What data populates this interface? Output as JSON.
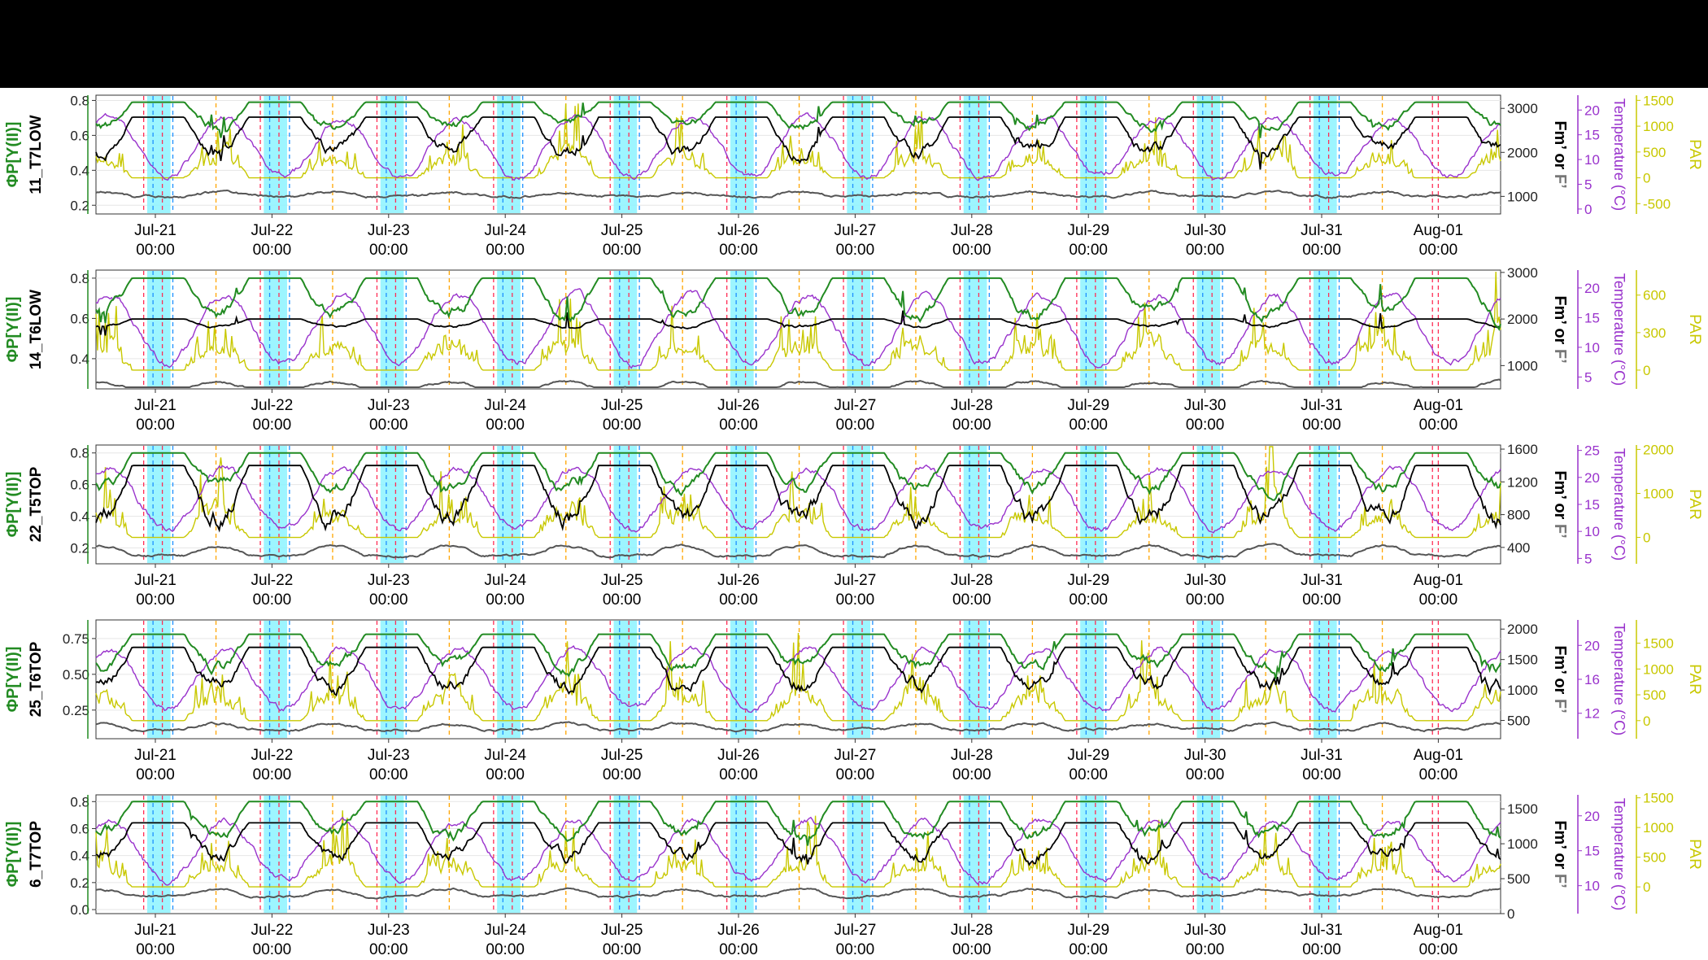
{
  "colors": {
    "phi_psii": "#228B22",
    "fm": "#000000",
    "f": "#555555",
    "temperature": "#9932CC",
    "par": "#C8C800",
    "night_shade": "#8CF3FF",
    "sunrise_line": "#FF2D55",
    "sunset_line": "#FFA500",
    "cyan_line": "#1E90FF"
  },
  "x_axis": {
    "tick_labels": [
      "Jul-21\n00:00",
      "Jul-22\n00:00",
      "Jul-23\n00:00",
      "Jul-24\n00:00",
      "Jul-25\n00:00",
      "Jul-26\n00:00",
      "Jul-27\n00:00",
      "Jul-28\n00:00",
      "Jul-29\n00:00",
      "Jul-30\n00:00",
      "Jul-31\n00:00",
      "Aug-01\n00:00"
    ],
    "start": "Jul-21 00:00",
    "end": "Aug-01 00:00"
  },
  "labels": {
    "phi": "ΦP[Y(II)]",
    "fm": "Fm’",
    "or": " or ",
    "f": "F’",
    "temperature": "Temperature (°C)",
    "par": "PAR"
  },
  "chart_data": [
    {
      "type": "line",
      "sample": "11_T7LOW",
      "phi_ticks": [
        "0.2",
        "0.4",
        "0.6",
        "0.8"
      ],
      "phi_ylim": [
        0.15,
        0.83
      ],
      "fm_ticks": [
        "1000",
        "2000",
        "3000"
      ],
      "fm_ylim": [
        600,
        3300
      ],
      "temp_ticks": [
        "0",
        "5",
        "10",
        "15",
        "20"
      ],
      "temp_ylim": [
        -1,
        23
      ],
      "par_ticks": [
        "-500",
        "0",
        "500",
        "1000",
        "1500"
      ],
      "par_ylim": [
        -700,
        1600
      ],
      "series_phi": {
        "night": 0.79,
        "day_base": 0.65
      },
      "series_fm": {
        "night": 2800,
        "day": 2300
      },
      "series_f": {
        "night": 1000,
        "day": 1100
      },
      "series_temp": {
        "min": 4,
        "max": 21
      },
      "series_par": {
        "max": 1400,
        "base": 0
      }
    },
    {
      "type": "line",
      "sample": "14_T6LOW",
      "phi_ticks": [
        "0.4",
        "0.6",
        "0.8"
      ],
      "phi_ylim": [
        0.25,
        0.84
      ],
      "fm_ticks": [
        "1000",
        "2000",
        "3000"
      ],
      "fm_ylim": [
        500,
        3050
      ],
      "temp_ticks": [
        "5",
        "10",
        "15",
        "20"
      ],
      "temp_ylim": [
        3,
        23
      ],
      "par_ticks": [
        "0",
        "300",
        "600"
      ],
      "par_ylim": [
        -150,
        800
      ],
      "series_phi": {
        "night": 0.8,
        "day_base": 0.62
      },
      "series_fm": {
        "night": 2000,
        "day": 1900
      },
      "series_f": {
        "night": 500,
        "day": 650
      },
      "series_temp": {
        "min": 5,
        "max": 21
      },
      "series_par": {
        "max": 700,
        "base": 0
      }
    },
    {
      "type": "line",
      "sample": "22_T5TOP",
      "phi_ticks": [
        "0.2",
        "0.4",
        "0.6",
        "0.8"
      ],
      "phi_ylim": [
        0.1,
        0.85
      ],
      "fm_ticks": [
        "400",
        "800",
        "1200",
        "1600"
      ],
      "fm_ylim": [
        200,
        1650
      ],
      "temp_ticks": [
        "5",
        "10",
        "15",
        "20",
        "25"
      ],
      "temp_ylim": [
        4,
        26
      ],
      "par_ticks": [
        "0",
        "1000",
        "2000"
      ],
      "par_ylim": [
        -600,
        2100
      ],
      "series_phi": {
        "night": 0.8,
        "day_base": 0.58
      },
      "series_fm": {
        "night": 1400,
        "day": 1000
      },
      "series_f": {
        "night": 300,
        "day": 420
      },
      "series_temp": {
        "min": 8,
        "max": 24
      },
      "series_par": {
        "max": 1900,
        "base": 0
      }
    },
    {
      "type": "line",
      "sample": "25_T6TOP",
      "phi_ticks": [
        "0.25",
        "0.50",
        "0.75"
      ],
      "phi_ylim": [
        0.05,
        0.88
      ],
      "fm_ticks": [
        "500",
        "1000",
        "1500",
        "2000"
      ],
      "fm_ylim": [
        200,
        2150
      ],
      "temp_ticks": [
        "12",
        "16",
        "20"
      ],
      "temp_ylim": [
        9,
        23
      ],
      "par_ticks": [
        "0",
        "500",
        "1000",
        "1500"
      ],
      "par_ylim": [
        -350,
        1950
      ],
      "series_phi": {
        "night": 0.78,
        "day_base": 0.55
      },
      "series_fm": {
        "night": 1700,
        "day": 1300
      },
      "series_f": {
        "night": 350,
        "day": 450
      },
      "series_temp": {
        "min": 11,
        "max": 21
      },
      "series_par": {
        "max": 1800,
        "base": 0
      }
    },
    {
      "type": "line",
      "sample": "6_T7TOP",
      "phi_ticks": [
        "0.0",
        "0.2",
        "0.4",
        "0.6",
        "0.8"
      ],
      "phi_ylim": [
        -0.03,
        0.85
      ],
      "fm_ticks": [
        "0",
        "500",
        "1000",
        "1500"
      ],
      "fm_ylim": [
        0,
        1700
      ],
      "temp_ticks": [
        "10",
        "15",
        "20"
      ],
      "temp_ylim": [
        6,
        23
      ],
      "par_ticks": [
        "0",
        "500",
        "1000",
        "1500"
      ],
      "par_ylim": [
        -450,
        1550
      ],
      "series_phi": {
        "night": 0.8,
        "day_base": 0.55
      },
      "series_fm": {
        "night": 1300,
        "day": 1000
      },
      "series_f": {
        "night": 250,
        "day": 350
      },
      "series_temp": {
        "min": 9,
        "max": 21
      },
      "series_par": {
        "max": 1450,
        "base": 0
      }
    }
  ]
}
